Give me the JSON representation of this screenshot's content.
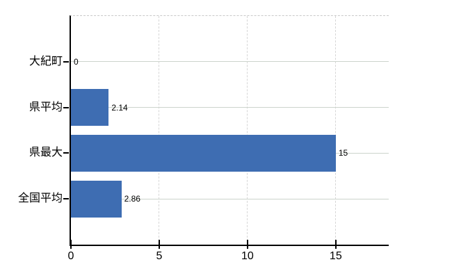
{
  "page": {
    "background_color": "#ffffff"
  },
  "chart_data": {
    "type": "bar",
    "orientation": "horizontal",
    "title": "",
    "xlabel": "",
    "ylabel": "",
    "categories": [
      "大紀町",
      "県平均",
      "県最大",
      "全国平均"
    ],
    "values": [
      0,
      2.14,
      15,
      2.86
    ],
    "data_labels": [
      "0",
      "2.14",
      "15",
      "2.86"
    ],
    "x_ticks": [
      0,
      5,
      10,
      15
    ],
    "x_tick_labels": [
      "0",
      "5",
      "10",
      "15"
    ],
    "xlim": [
      0,
      18
    ],
    "grid": "on",
    "legend": "none",
    "colors": {
      "bar": "#3e6db2",
      "axis": "#000000",
      "h_gridline": "#ccd4cc",
      "v_gridline": "#d6d6d6",
      "plot_top_border": "#c9c9c9",
      "text": "#000000"
    }
  }
}
